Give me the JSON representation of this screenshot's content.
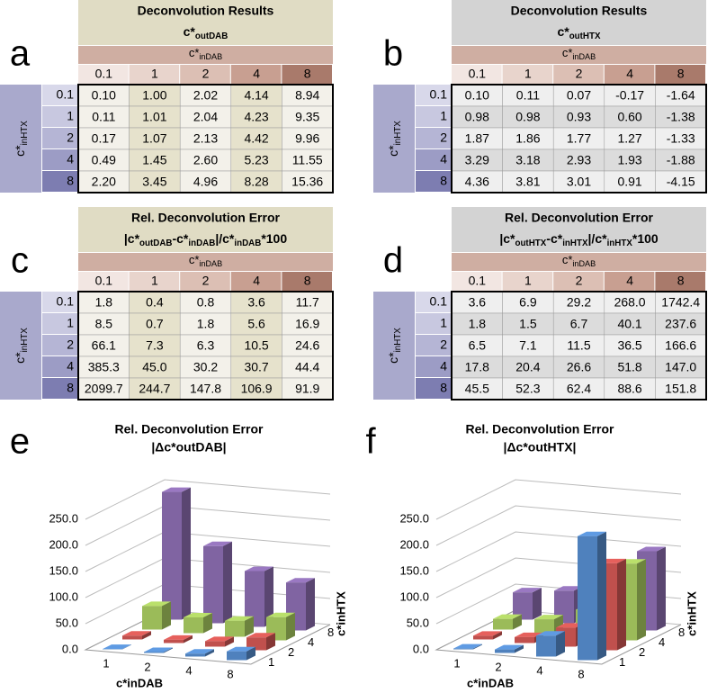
{
  "tables": [
    {
      "letter": "a",
      "title": "Deconvolution Results",
      "subtitle": [
        "c*",
        "outDAB"
      ],
      "col_label": [
        "c*",
        "inDAB"
      ],
      "row_label": [
        "c*",
        "inHTX"
      ],
      "cols": [
        "0.1",
        "1",
        "2",
        "4",
        "8"
      ],
      "rows": [
        "0.1",
        "1",
        "2",
        "4",
        "8"
      ],
      "cells": [
        [
          "0.10",
          "1.00",
          "2.02",
          "4.14",
          "8.94"
        ],
        [
          "0.11",
          "1.01",
          "2.04",
          "4.23",
          "9.35"
        ],
        [
          "0.17",
          "1.07",
          "2.13",
          "4.42",
          "9.96"
        ],
        [
          "0.49",
          "1.45",
          "2.60",
          "5.23",
          "11.55"
        ],
        [
          "2.20",
          "3.45",
          "4.96",
          "8.28",
          "15.36"
        ]
      ]
    },
    {
      "letter": "b",
      "title": "Deconvolution Results",
      "subtitle": [
        "c*",
        "outHTX"
      ],
      "col_label": [
        "c*",
        "inDAB"
      ],
      "row_label": [
        "c*",
        "inHTX"
      ],
      "cols": [
        "0.1",
        "1",
        "2",
        "4",
        "8"
      ],
      "rows": [
        "0.1",
        "1",
        "2",
        "4",
        "8"
      ],
      "cells": [
        [
          "0.10",
          "0.11",
          "0.07",
          "-0.17",
          "-1.64"
        ],
        [
          "0.98",
          "0.98",
          "0.93",
          "0.60",
          "-1.38"
        ],
        [
          "1.87",
          "1.86",
          "1.77",
          "1.27",
          "-1.33"
        ],
        [
          "3.29",
          "3.18",
          "2.93",
          "1.93",
          "-1.88"
        ],
        [
          "4.36",
          "3.81",
          "3.01",
          "0.91",
          "-4.15"
        ]
      ]
    },
    {
      "letter": "c",
      "title": "Rel. Deconvolution Error",
      "subtitle": [
        "|c*",
        "outDAB",
        "-c*",
        "inDAB",
        "|/c*",
        "inDAB",
        "*100"
      ],
      "col_label": [
        "c*",
        "inDAB"
      ],
      "row_label": [
        "c*",
        "inHTX"
      ],
      "cols": [
        "0.1",
        "1",
        "2",
        "4",
        "8"
      ],
      "rows": [
        "0.1",
        "1",
        "2",
        "4",
        "8"
      ],
      "cells": [
        [
          "1.8",
          "0.4",
          "0.8",
          "3.6",
          "11.7"
        ],
        [
          "8.5",
          "0.7",
          "1.8",
          "5.6",
          "16.9"
        ],
        [
          "66.1",
          "7.3",
          "6.3",
          "10.5",
          "24.6"
        ],
        [
          "385.3",
          "45.0",
          "30.2",
          "30.7",
          "44.4"
        ],
        [
          "2099.7",
          "244.7",
          "147.8",
          "106.9",
          "91.9"
        ]
      ]
    },
    {
      "letter": "d",
      "title": "Rel. Deconvolution Error",
      "subtitle": [
        "|c*",
        "outHTX",
        "-c*",
        "inHTX",
        "|/c*",
        "inHTX",
        "*100"
      ],
      "col_label": [
        "c*",
        "inDAB"
      ],
      "row_label": [
        "c*",
        "inHTX"
      ],
      "cols": [
        "0.1",
        "1",
        "2",
        "4",
        "8"
      ],
      "rows": [
        "0.1",
        "1",
        "2",
        "4",
        "8"
      ],
      "cells": [
        [
          "3.6",
          "6.9",
          "29.2",
          "268.0",
          "1742.4"
        ],
        [
          "1.8",
          "1.5",
          "6.7",
          "40.1",
          "237.6"
        ],
        [
          "6.5",
          "7.1",
          "11.5",
          "36.5",
          "166.6"
        ],
        [
          "17.8",
          "20.4",
          "26.6",
          "51.8",
          "147.0"
        ],
        [
          "45.5",
          "52.3",
          "62.4",
          "88.6",
          "151.8"
        ]
      ]
    }
  ],
  "charts": [
    {
      "letter": "e",
      "type": "bar3d",
      "title": "Rel. Deconvolution Error",
      "subtitle": "|Δc*outDAB|",
      "categories": [
        "1",
        "2",
        "4",
        "8"
      ],
      "xlabel": "c*inDAB",
      "depth_label": "c*inHTX",
      "ylim": [
        0,
        250
      ],
      "yticks": [
        {
          "value": 0,
          "label": "0.0"
        },
        {
          "value": 50,
          "label": "50.0"
        },
        {
          "value": 100,
          "label": "100.0"
        },
        {
          "value": 150,
          "label": "150.0"
        },
        {
          "value": 200,
          "label": "200.0"
        },
        {
          "value": 250,
          "label": "250.0"
        }
      ],
      "series": [
        {
          "name": "1",
          "color": "#4f81bd",
          "values": [
            0.7,
            1.8,
            5.6,
            16.9
          ]
        },
        {
          "name": "2",
          "color": "#c0504d",
          "values": [
            7.3,
            6.3,
            10.5,
            24.6
          ]
        },
        {
          "name": "4",
          "color": "#9bbb59",
          "values": [
            45.0,
            30.2,
            30.7,
            44.4
          ]
        },
        {
          "name": "8",
          "color": "#8064a2",
          "values": [
            244.7,
            147.8,
            106.9,
            91.9
          ]
        }
      ]
    },
    {
      "letter": "f",
      "type": "bar3d",
      "title": "Rel. Deconvolution Error",
      "subtitle": "|Δc*outHTX|",
      "categories": [
        "1",
        "2",
        "4",
        "8"
      ],
      "xlabel": "c*inDAB",
      "depth_label": "c*inHTX",
      "ylim": [
        0,
        250
      ],
      "yticks": [
        {
          "value": 0,
          "label": "0.0"
        },
        {
          "value": 50,
          "label": "50.0"
        },
        {
          "value": 100,
          "label": "100.0"
        },
        {
          "value": 150,
          "label": "150.0"
        },
        {
          "value": 200,
          "label": "200.0"
        },
        {
          "value": 250,
          "label": "250.0"
        }
      ],
      "series": [
        {
          "name": "1",
          "color": "#4f81bd",
          "values": [
            1.5,
            6.7,
            40.1,
            237.6
          ]
        },
        {
          "name": "2",
          "color": "#c0504d",
          "values": [
            7.1,
            11.5,
            36.5,
            166.6
          ]
        },
        {
          "name": "4",
          "color": "#9bbb59",
          "values": [
            20.4,
            26.6,
            51.8,
            147.0
          ]
        },
        {
          "name": "8",
          "color": "#8064a2",
          "values": [
            52.3,
            62.4,
            88.6,
            151.8
          ]
        }
      ]
    }
  ]
}
